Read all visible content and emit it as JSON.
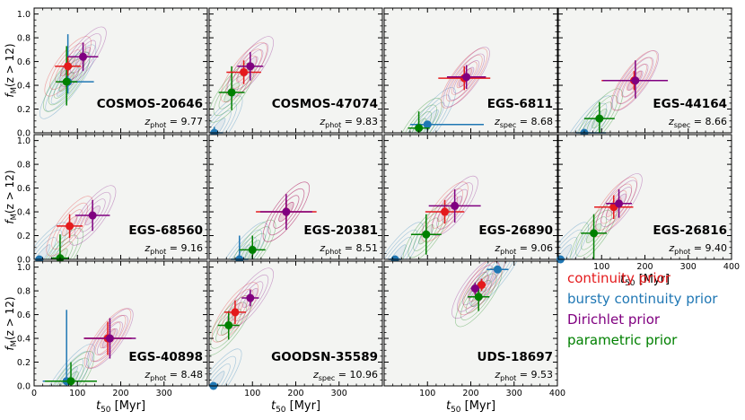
{
  "chart_data": {
    "type": "scatter",
    "title": "",
    "xlabel_main": "t",
    "xlabel_sub": "50",
    "xlabel_unit": " [Myr]",
    "ylabel_main": "f",
    "ylabel_sub": "M",
    "ylabel_cond": "(z > 12)",
    "xlim": [
      0,
      400
    ],
    "ylim": [
      0,
      1.05
    ],
    "xticks": [
      "0",
      "100",
      "200",
      "300",
      "400"
    ],
    "yticks": [
      "0.0",
      "0.2",
      "0.4",
      "0.6",
      "0.8",
      "1.0"
    ],
    "grid": false,
    "colors": {
      "continuity": "#e41a1c",
      "bursty": "#1f77b4",
      "dirichlet": "#800080",
      "parametric": "#008000",
      "panel_bg": "#f3f4f2"
    },
    "legend": [
      {
        "key": "continuity",
        "label": "continuity prior",
        "color": "#e41a1c"
      },
      {
        "key": "bursty",
        "label": "bursty continuity prior",
        "color": "#1f77b4"
      },
      {
        "key": "dirichlet",
        "label": "Dirichlet prior",
        "color": "#800080"
      },
      {
        "key": "parametric",
        "label": "parametric prior",
        "color": "#008000"
      }
    ],
    "panels": [
      {
        "name": "COSMOS-20646",
        "zlabel": "phot",
        "z": "9.77",
        "points": {
          "continuity": {
            "x": 78,
            "y": 0.56,
            "xerr": [
              30,
              30
            ],
            "yerr": [
              0.08,
              0.08
            ]
          },
          "dirichlet": {
            "x": 113,
            "y": 0.64,
            "xerr": [
              35,
              35
            ],
            "yerr": [
              0.12,
              0.12
            ]
          },
          "parametric": {
            "x": 75,
            "y": 0.43,
            "xerr": [
              25,
              25
            ],
            "yerr": [
              0.2,
              0.3
            ]
          },
          "bursty": {
            "x": 78,
            "y": 0.43,
            "xerr": [
              20,
              60
            ],
            "yerr": [
              0.1,
              0.4
            ]
          }
        }
      },
      {
        "name": "COSMOS-47074",
        "zlabel": "phot",
        "z": "9.83",
        "points": {
          "continuity": {
            "x": 80,
            "y": 0.51,
            "xerr": [
              40,
              40
            ],
            "yerr": [
              0.1,
              0.1
            ]
          },
          "dirichlet": {
            "x": 95,
            "y": 0.56,
            "xerr": [
              30,
              30
            ],
            "yerr": [
              0.12,
              0.12
            ]
          },
          "parametric": {
            "x": 52,
            "y": 0.34,
            "xerr": [
              30,
              30
            ],
            "yerr": [
              0.15,
              0.22
            ]
          },
          "bursty": {
            "x": 12,
            "y": 0.0,
            "xerr": [
              10,
              20
            ],
            "yerr": [
              0.0,
              0.05
            ]
          }
        }
      },
      {
        "name": "EGS-6811",
        "zlabel": "spec",
        "z": "8.68",
        "points": {
          "continuity": {
            "x": 185,
            "y": 0.46,
            "xerr": [
              60,
              60
            ],
            "yerr": [
              0.1,
              0.1
            ]
          },
          "dirichlet": {
            "x": 190,
            "y": 0.47,
            "xerr": [
              45,
              45
            ],
            "yerr": [
              0.1,
              0.1
            ]
          },
          "parametric": {
            "x": 80,
            "y": 0.04,
            "xerr": [
              25,
              25
            ],
            "yerr": [
              0.04,
              0.14
            ]
          },
          "bursty": {
            "x": 100,
            "y": 0.07,
            "xerr": [
              40,
              130
            ],
            "yerr": [
              0.05,
              0.0
            ]
          }
        }
      },
      {
        "name": "EGS-44164",
        "zlabel": "spec",
        "z": "8.66",
        "points": {
          "continuity": {
            "x": 175,
            "y": 0.44,
            "xerr": [
              75,
              75
            ],
            "yerr": [
              0.08,
              0.08
            ]
          },
          "dirichlet": {
            "x": 178,
            "y": 0.44,
            "xerr": [
              75,
              75
            ],
            "yerr": [
              0.15,
              0.17
            ]
          },
          "parametric": {
            "x": 95,
            "y": 0.12,
            "xerr": [
              35,
              35
            ],
            "yerr": [
              0.12,
              0.14
            ]
          },
          "bursty": {
            "x": 60,
            "y": 0.0,
            "xerr": [
              20,
              50
            ],
            "yerr": [
              0.0,
              0.0
            ]
          }
        }
      },
      {
        "name": "EGS-68560",
        "zlabel": "phot",
        "z": "9.16",
        "points": {
          "continuity": {
            "x": 82,
            "y": 0.28,
            "xerr": [
              30,
              30
            ],
            "yerr": [
              0.1,
              0.1
            ]
          },
          "dirichlet": {
            "x": 135,
            "y": 0.37,
            "xerr": [
              40,
              40
            ],
            "yerr": [
              0.13,
              0.13
            ]
          },
          "parametric": {
            "x": 60,
            "y": 0.01,
            "xerr": [
              20,
              20
            ],
            "yerr": [
              0.01,
              0.2
            ]
          },
          "bursty": {
            "x": 12,
            "y": 0.0,
            "xerr": [
              10,
              10
            ],
            "yerr": [
              0.0,
              0.0
            ]
          }
        }
      },
      {
        "name": "EGS-20381",
        "zlabel": "phot",
        "z": "8.51",
        "points": {
          "continuity": {
            "x": 178,
            "y": 0.4,
            "xerr": [
              70,
              70
            ],
            "yerr": [
              0.1,
              0.1
            ]
          },
          "dirichlet": {
            "x": 178,
            "y": 0.4,
            "xerr": [
              60,
              60
            ],
            "yerr": [
              0.15,
              0.15
            ]
          },
          "parametric": {
            "x": 100,
            "y": 0.08,
            "xerr": [
              30,
              30
            ],
            "yerr": [
              0.08,
              0.12
            ]
          },
          "bursty": {
            "x": 70,
            "y": 0.0,
            "xerr": [
              20,
              20
            ],
            "yerr": [
              0.0,
              0.2
            ]
          }
        }
      },
      {
        "name": "EGS-26890",
        "zlabel": "phot",
        "z": "9.06",
        "points": {
          "continuity": {
            "x": 140,
            "y": 0.4,
            "xerr": [
              45,
              45
            ],
            "yerr": [
              0.1,
              0.1
            ]
          },
          "dirichlet": {
            "x": 163,
            "y": 0.45,
            "xerr": [
              60,
              60
            ],
            "yerr": [
              0.14,
              0.14
            ]
          },
          "parametric": {
            "x": 97,
            "y": 0.21,
            "xerr": [
              35,
              35
            ],
            "yerr": [
              0.17,
              0.17
            ]
          },
          "bursty": {
            "x": 25,
            "y": 0.0,
            "xerr": [
              15,
              15
            ],
            "yerr": [
              0.0,
              0.0
            ]
          }
        }
      },
      {
        "name": "EGS-26816",
        "zlabel": "phot",
        "z": "9.40",
        "points": {
          "continuity": {
            "x": 128,
            "y": 0.44,
            "xerr": [
              45,
              45
            ],
            "yerr": [
              0.1,
              0.1
            ]
          },
          "dirichlet": {
            "x": 140,
            "y": 0.47,
            "xerr": [
              30,
              30
            ],
            "yerr": [
              0.12,
              0.12
            ]
          },
          "parametric": {
            "x": 82,
            "y": 0.22,
            "xerr": [
              30,
              30
            ],
            "yerr": [
              0.22,
              0.16
            ]
          },
          "bursty": {
            "x": 5,
            "y": 0.0,
            "xerr": [
              5,
              10
            ],
            "yerr": [
              0.0,
              0.0
            ]
          }
        }
      },
      {
        "name": "EGS-40898",
        "zlabel": "phot",
        "z": "8.48",
        "points": {
          "continuity": {
            "x": 170,
            "y": 0.4,
            "xerr": [
              55,
              55
            ],
            "yerr": [
              0.14,
              0.14
            ]
          },
          "dirichlet": {
            "x": 175,
            "y": 0.4,
            "xerr": [
              60,
              60
            ],
            "yerr": [
              0.17,
              0.17
            ]
          },
          "parametric": {
            "x": 85,
            "y": 0.04,
            "xerr": [
              60,
              60
            ],
            "yerr": [
              0.04,
              0.16
            ]
          },
          "bursty": {
            "x": 75,
            "y": 0.04,
            "xerr": [
              55,
              55
            ],
            "yerr": [
              0.04,
              0.6
            ]
          }
        }
      },
      {
        "name": "GOODSN-35589",
        "zlabel": "spec",
        "z": "10.96",
        "points": {
          "continuity": {
            "x": 60,
            "y": 0.62,
            "xerr": [
              25,
              25
            ],
            "yerr": [
              0.1,
              0.1
            ]
          },
          "dirichlet": {
            "x": 95,
            "y": 0.74,
            "xerr": [
              20,
              20
            ],
            "yerr": [
              0.07,
              0.07
            ]
          },
          "parametric": {
            "x": 45,
            "y": 0.51,
            "xerr": [
              25,
              25
            ],
            "yerr": [
              0.12,
              0.12
            ]
          },
          "bursty": {
            "x": 10,
            "y": 0.0,
            "xerr": [
              10,
              10
            ],
            "yerr": [
              0.0,
              0.0
            ]
          }
        }
      },
      {
        "name": "UDS-18697",
        "zlabel": "phot",
        "z": "9.53",
        "points": {
          "continuity": {
            "x": 225,
            "y": 0.85,
            "xerr": [
              10,
              10
            ],
            "yerr": [
              0.05,
              0.05
            ]
          },
          "dirichlet": {
            "x": 210,
            "y": 0.82,
            "xerr": [
              10,
              10
            ],
            "yerr": [
              0.05,
              0.05
            ]
          },
          "parametric": {
            "x": 218,
            "y": 0.75,
            "xerr": [
              25,
              25
            ],
            "yerr": [
              0.12,
              0.12
            ]
          },
          "bursty": {
            "x": 262,
            "y": 0.98,
            "xerr": [
              25,
              25
            ],
            "yerr": [
              0.0,
              0.0
            ]
          }
        }
      }
    ]
  }
}
